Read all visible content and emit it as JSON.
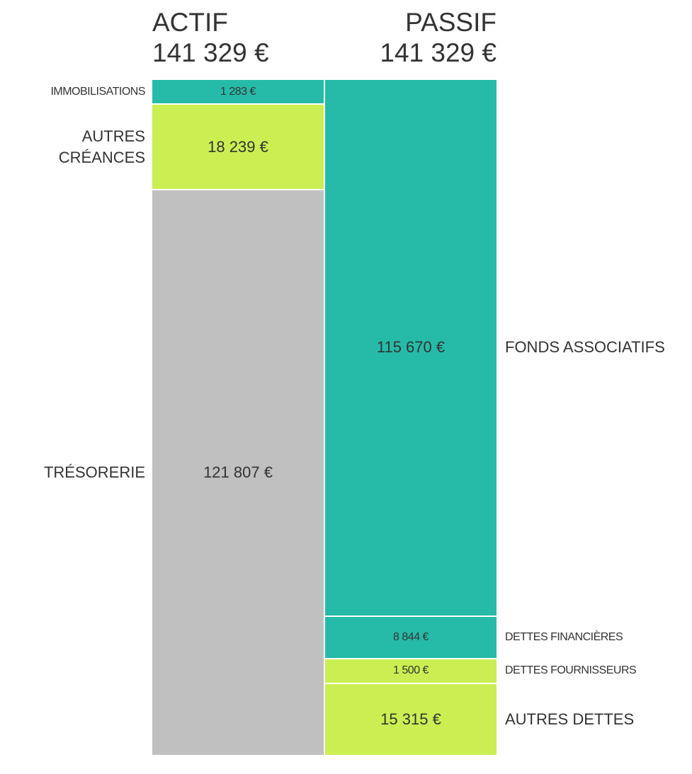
{
  "chart_data": {
    "type": "balance-sheet",
    "columns": [
      {
        "name": "ACTIF",
        "total": {
          "value": 141329,
          "label": "141 329 €"
        },
        "segments": [
          {
            "name": "IMMOBILISATIONS",
            "value": 1283,
            "value_label": "1 283 €",
            "color": "#26bba8"
          },
          {
            "name": "AUTRES CRÉANCES",
            "value": 18239,
            "value_label": "18 239 €",
            "color": "#cbef52"
          },
          {
            "name": "TRÉSORERIE",
            "value": 121807,
            "value_label": "121 807 €",
            "color": "#c0c0c0"
          }
        ]
      },
      {
        "name": "PASSIF",
        "total": {
          "value": 141329,
          "label": "141 329 €"
        },
        "segments": [
          {
            "name": "FONDS ASSOCIATIFS",
            "value": 115670,
            "value_label": "115 670 €",
            "color": "#26bba8"
          },
          {
            "name": "DETTES FINANCIÈRES",
            "value": 8844,
            "value_label": "8 844 €",
            "color": "#26bba8"
          },
          {
            "name": "DETTES FOURNISSEURS",
            "value": 1500,
            "value_label": "1 500 €",
            "color": "#cbef52"
          },
          {
            "name": "AUTRES DETTES",
            "value": 15315,
            "value_label": "15 315 €",
            "color": "#cbef52"
          }
        ]
      }
    ]
  }
}
